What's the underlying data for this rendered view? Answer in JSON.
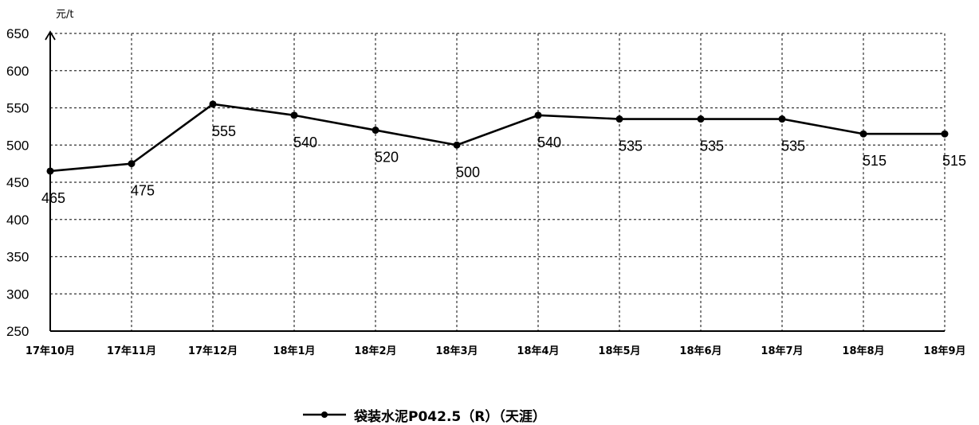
{
  "chart_data": {
    "type": "line",
    "title": "",
    "ylabel": "元/t",
    "xlabel": "",
    "categories": [
      "17年10月",
      "17年11月",
      "17年12月",
      "18年1月",
      "18年2月",
      "18年3月",
      "18年4月",
      "18年5月",
      "18年6月",
      "18年7月",
      "18年8月",
      "18年9月"
    ],
    "series": [
      {
        "name": "袋装水泥P042.5（R）（天涯）",
        "values": [
          465,
          475,
          555,
          540,
          520,
          500,
          540,
          535,
          535,
          535,
          515,
          515
        ]
      }
    ],
    "ylim": [
      250,
      650
    ],
    "yticks": [
      "250",
      "300",
      "350",
      "400",
      "450",
      "500",
      "550",
      "600",
      "650"
    ],
    "data_labels": [
      "465",
      "475",
      "555",
      "540",
      "520",
      "500",
      "540",
      "535",
      "535",
      "535",
      "515",
      "515"
    ],
    "grid": true,
    "legend_position": "bottom",
    "colors": {
      "line": "#000000",
      "grid": "#333333"
    }
  }
}
